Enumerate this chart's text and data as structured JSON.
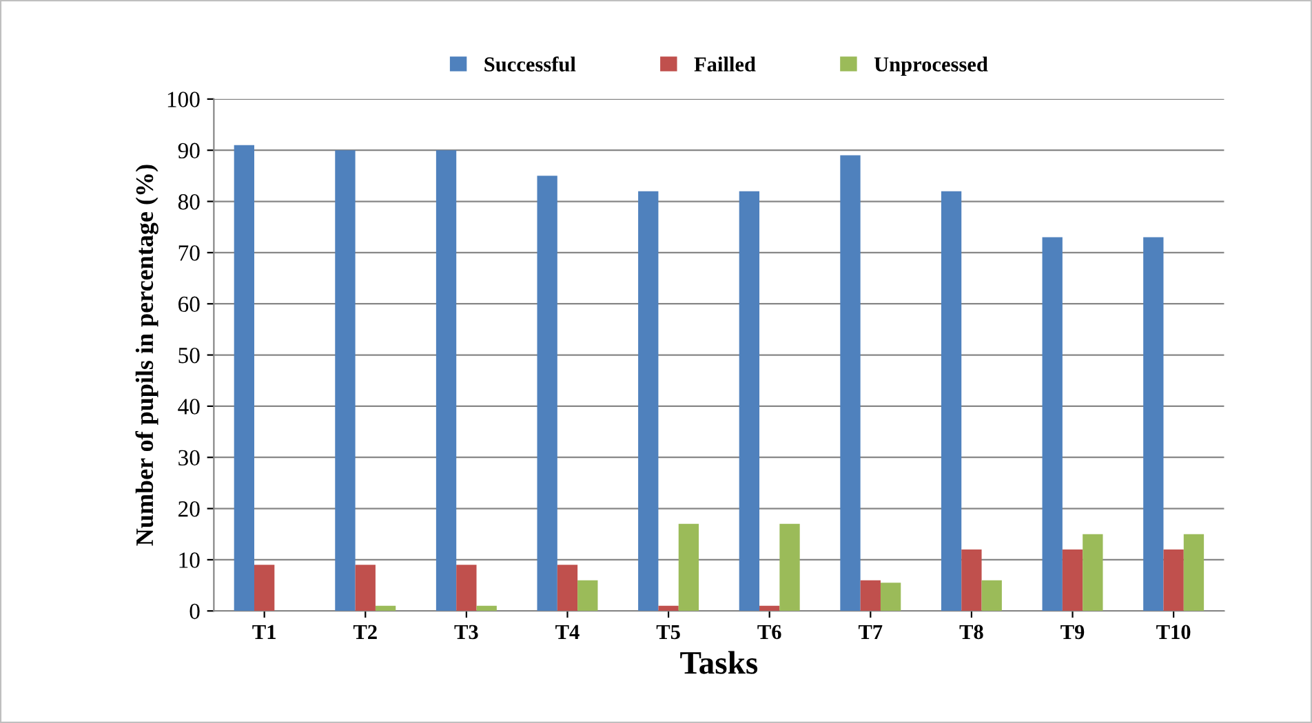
{
  "chart_data": {
    "type": "bar",
    "xlabel": "Tasks",
    "ylabel": "Number of pupils in percentage (%)",
    "categories": [
      "T1",
      "T2",
      "T3",
      "T4",
      "T5",
      "T6",
      "T7",
      "T8",
      "T9",
      "T10"
    ],
    "series": [
      {
        "name": "Successful",
        "color": "#4f81bd",
        "values": [
          91,
          90,
          90,
          85,
          82,
          82,
          89,
          82,
          73,
          73
        ]
      },
      {
        "name": "Failled",
        "color": "#c0504d",
        "values": [
          9,
          9,
          9,
          9,
          1,
          1,
          6,
          12,
          12,
          12
        ]
      },
      {
        "name": "Unprocessed",
        "color": "#9bbb59",
        "values": [
          0,
          1,
          1,
          6,
          17,
          17,
          5.5,
          6,
          15,
          15
        ]
      }
    ],
    "ylim": [
      0,
      100
    ],
    "yticks": [
      0,
      10,
      20,
      30,
      40,
      50,
      60,
      70,
      80,
      90,
      100
    ],
    "grid": "y",
    "legend": "top"
  }
}
